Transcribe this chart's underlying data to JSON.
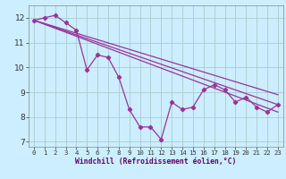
{
  "xlabel": "Windchill (Refroidissement éolien,°C)",
  "bg_color": "#cceeff",
  "grid_color": "#aacccc",
  "line_color": "#993399",
  "xlim": [
    -0.5,
    23.5
  ],
  "ylim": [
    6.8,
    12.5
  ],
  "yticks": [
    7,
    8,
    9,
    10,
    11,
    12
  ],
  "xticks": [
    0,
    1,
    2,
    3,
    4,
    5,
    6,
    7,
    8,
    9,
    10,
    11,
    12,
    13,
    14,
    15,
    16,
    17,
    18,
    19,
    20,
    21,
    22,
    23
  ],
  "wavy": {
    "x": [
      0,
      1,
      2,
      3,
      4,
      5,
      6,
      7,
      8,
      9,
      10,
      11,
      12,
      13,
      14,
      15,
      16,
      17,
      18,
      19,
      20,
      21,
      22,
      23
    ],
    "y": [
      11.9,
      12.0,
      12.1,
      11.8,
      11.5,
      9.9,
      10.5,
      10.4,
      9.6,
      8.3,
      7.6,
      7.6,
      7.1,
      8.6,
      8.3,
      8.4,
      9.1,
      9.3,
      9.1,
      8.6,
      8.8,
      8.4,
      8.2,
      8.5
    ]
  },
  "linear1": {
    "x": [
      0,
      23
    ],
    "y": [
      11.9,
      8.5
    ]
  },
  "linear2": {
    "x": [
      0,
      23
    ],
    "y": [
      11.9,
      8.9
    ]
  },
  "linear3": {
    "x": [
      0,
      23
    ],
    "y": [
      11.9,
      8.2
    ]
  }
}
